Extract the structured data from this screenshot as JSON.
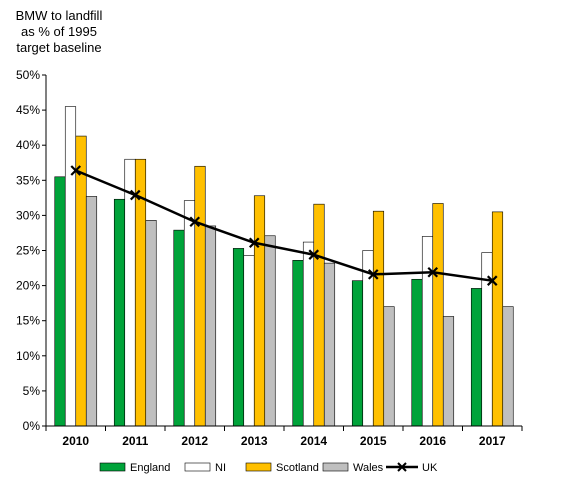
{
  "chart_data": {
    "type": "bar",
    "title": "",
    "ylabel_lines": [
      "BMW to landfill",
      "as % of 1995",
      "target baseline"
    ],
    "xlabel": "",
    "categories": [
      "2010",
      "2011",
      "2012",
      "2013",
      "2014",
      "2015",
      "2016",
      "2017"
    ],
    "ylim": [
      0,
      50
    ],
    "yticks": [
      "0%",
      "5%",
      "10%",
      "15%",
      "20%",
      "25%",
      "30%",
      "35%",
      "40%",
      "45%",
      "50%"
    ],
    "grid": false,
    "legend_position": "bottom",
    "series": [
      {
        "name": "England",
        "kind": "bar",
        "color": "#00a33a",
        "values": [
          35.5,
          32.3,
          27.9,
          25.3,
          23.6,
          20.7,
          20.9,
          19.6
        ]
      },
      {
        "name": "NI",
        "kind": "bar",
        "color": "#ffffff",
        "values": [
          45.5,
          38.0,
          32.1,
          24.3,
          26.2,
          25.0,
          27.0,
          24.7
        ]
      },
      {
        "name": "Scotland",
        "kind": "bar",
        "color": "#ffc000",
        "values": [
          41.3,
          38.0,
          37.0,
          32.8,
          31.6,
          30.6,
          31.7,
          30.5
        ]
      },
      {
        "name": "Wales",
        "kind": "bar",
        "color": "#bfbfbf",
        "values": [
          32.7,
          29.3,
          28.5,
          27.1,
          23.2,
          17.0,
          15.6,
          17.0
        ]
      },
      {
        "name": "UK",
        "kind": "line",
        "color": "#000000",
        "marker": "x",
        "values": [
          36.4,
          32.9,
          29.1,
          26.1,
          24.4,
          21.6,
          21.9,
          20.7
        ]
      }
    ]
  }
}
